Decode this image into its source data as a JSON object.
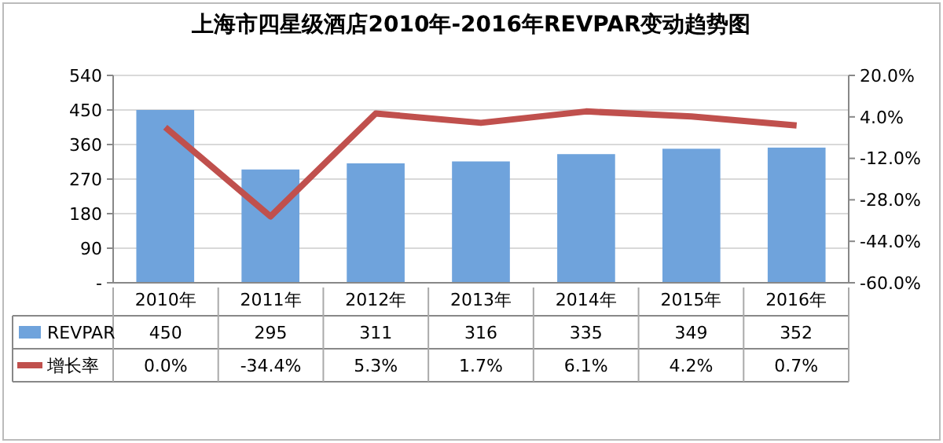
{
  "chart_data": {
    "type": "bar",
    "title": "上海市四星级酒店2010年-2016年REVPAR变动趋势图",
    "categories": [
      "2010年",
      "2011年",
      "2012年",
      "2013年",
      "2014年",
      "2015年",
      "2016年"
    ],
    "series": [
      {
        "name": "REVPAR",
        "color": "#6fa3dc",
        "values": [
          450,
          295,
          311,
          316,
          335,
          349,
          352
        ],
        "value_labels": [
          "450",
          "295",
          "311",
          "316",
          "335",
          "349",
          "352"
        ]
      },
      {
        "name": "增长率",
        "type": "line",
        "axis": "y2",
        "color": "#c0504d",
        "values": [
          0.0,
          -34.4,
          5.3,
          1.7,
          6.1,
          4.2,
          0.7
        ],
        "value_labels": [
          "0.0%",
          "-34.4%",
          "5.3%",
          "1.7%",
          "6.1%",
          "4.2%",
          "0.7%"
        ]
      }
    ],
    "ylim": [
      0,
      540
    ],
    "yticks": [
      {
        "value": 0,
        "label": "-"
      },
      90,
      180,
      270,
      360,
      450,
      540
    ],
    "y2lim": [
      -60,
      20
    ],
    "y2ticks": [
      {
        "value": -60,
        "label": "-60.0%"
      },
      {
        "value": -44,
        "label": "-44.0%"
      },
      {
        "value": -28,
        "label": "-28.0%"
      },
      {
        "value": -12,
        "label": "-12.0%"
      },
      {
        "value": 4,
        "label": "4.0%"
      },
      {
        "value": 20,
        "label": "20.0%"
      }
    ],
    "grid": "y",
    "legend": "bottom",
    "marker": "none",
    "line_style": "solid"
  }
}
